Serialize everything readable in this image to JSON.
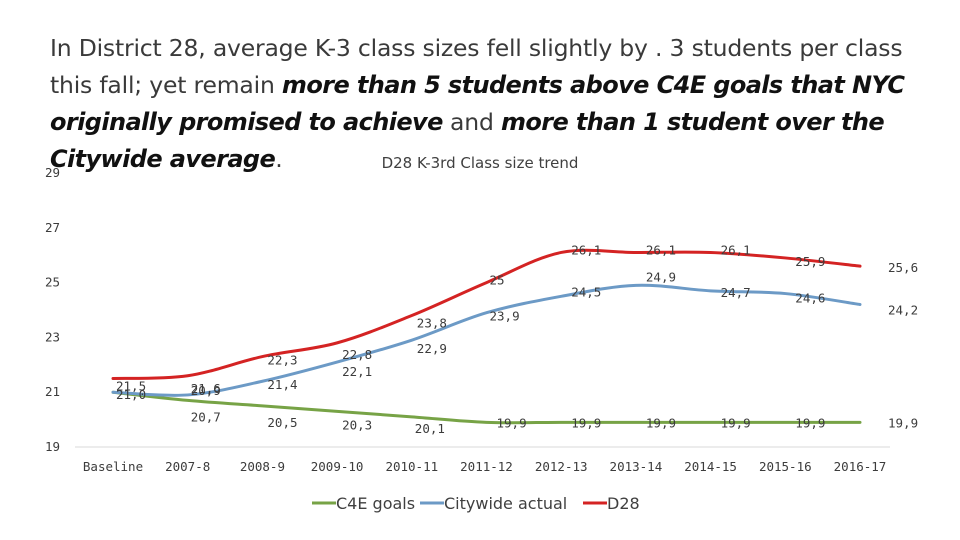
{
  "headline": {
    "part1": "In District 28, average K-3 class sizes fell slightly by . 3 students per class this fall; yet remain ",
    "em1": "more than 5 students above C4E goals that NYC originally promised to achieve",
    "part2": " and ",
    "em2": "more than 1 student over the Citywide average",
    "part3": "."
  },
  "chart_data": {
    "type": "line",
    "title": "D28 K-3rd Class size trend",
    "xlabel": "",
    "ylabel": "",
    "ylim": [
      19,
      29
    ],
    "yticks": [
      19,
      21,
      23,
      25,
      27,
      29
    ],
    "categories": [
      "Baseline",
      "2007-8",
      "2008-9",
      "2009-10",
      "2010-11",
      "2011-12",
      "2012-13",
      "2013-14",
      "2014-15",
      "2015-16",
      "2016-17"
    ],
    "series": [
      {
        "name": "C4E goals",
        "color": "#77a346",
        "values": [
          21.0,
          20.7,
          20.5,
          20.3,
          20.1,
          19.9,
          19.9,
          19.9,
          19.9,
          19.9,
          19.9
        ],
        "labels": [
          "21,0",
          "20,7",
          "20,5",
          "20,3",
          "20,1",
          "19,9",
          "19,9",
          "19,9",
          "19,9",
          "19,9",
          "19,9"
        ]
      },
      {
        "name": "Citywide actual",
        "color": "#6c9ac6",
        "values": [
          21.0,
          20.9,
          21.4,
          22.1,
          22.9,
          23.9,
          24.5,
          24.9,
          24.7,
          24.6,
          24.2
        ],
        "labels": [
          "",
          "20,9",
          "21,4",
          "22,1",
          "22,9",
          "23,9",
          "24,5",
          "24,9",
          "24,7",
          "24,6",
          "24,2"
        ]
      },
      {
        "name": "D28",
        "color": "#d42323",
        "values": [
          21.5,
          21.6,
          22.3,
          22.8,
          23.8,
          25.0,
          26.1,
          26.1,
          26.1,
          25.9,
          25.6
        ],
        "labels": [
          "21,5",
          "21,6",
          "22,3",
          "22,8",
          "23,8",
          "25",
          "26,1",
          "26,1",
          "26,1",
          "25,9",
          "25,6"
        ]
      }
    ],
    "legend_position": "bottom"
  }
}
